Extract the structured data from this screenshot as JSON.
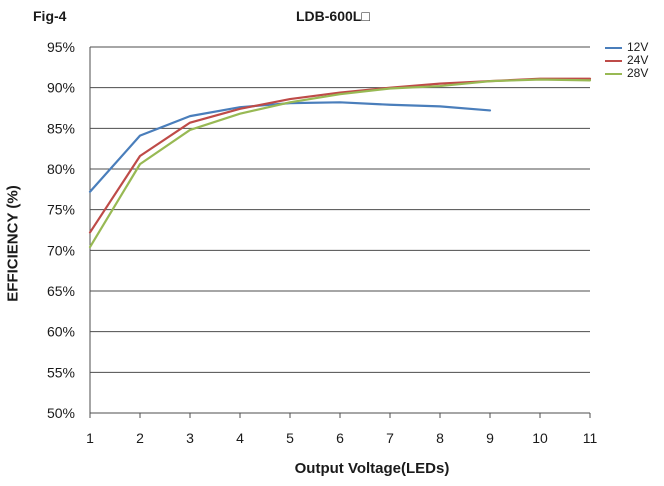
{
  "figure_label": "Fig-4",
  "chart_data": {
    "type": "line",
    "title": "LDB-600L□",
    "xlabel": "Output Voltage(LEDs)",
    "ylabel": "EFFICIENCY (%)",
    "x": [
      1,
      2,
      3,
      4,
      5,
      6,
      7,
      8,
      9,
      10,
      11
    ],
    "xlim": [
      1,
      11
    ],
    "ylim": [
      50,
      95
    ],
    "yticks": [
      50,
      55,
      60,
      65,
      70,
      75,
      80,
      85,
      90,
      95
    ],
    "ytick_labels": [
      "50%",
      "55%",
      "60%",
      "65%",
      "70%",
      "75%",
      "80%",
      "85%",
      "90%",
      "95%"
    ],
    "grid": "horizontal",
    "legend": "right",
    "series": [
      {
        "name": "12V",
        "color": "#4a7ebb",
        "values": [
          77.2,
          84.1,
          86.5,
          87.6,
          88.1,
          88.2,
          87.9,
          87.7,
          87.2,
          null,
          null
        ]
      },
      {
        "name": "24V",
        "color": "#be4b48",
        "values": [
          72.2,
          81.6,
          85.7,
          87.4,
          88.6,
          89.4,
          90.0,
          90.5,
          90.8,
          91.1,
          91.1
        ]
      },
      {
        "name": "28V",
        "color": "#98b954",
        "values": [
          70.4,
          80.6,
          84.8,
          86.8,
          88.2,
          89.2,
          89.9,
          90.2,
          90.8,
          91.0,
          90.9
        ]
      }
    ]
  }
}
